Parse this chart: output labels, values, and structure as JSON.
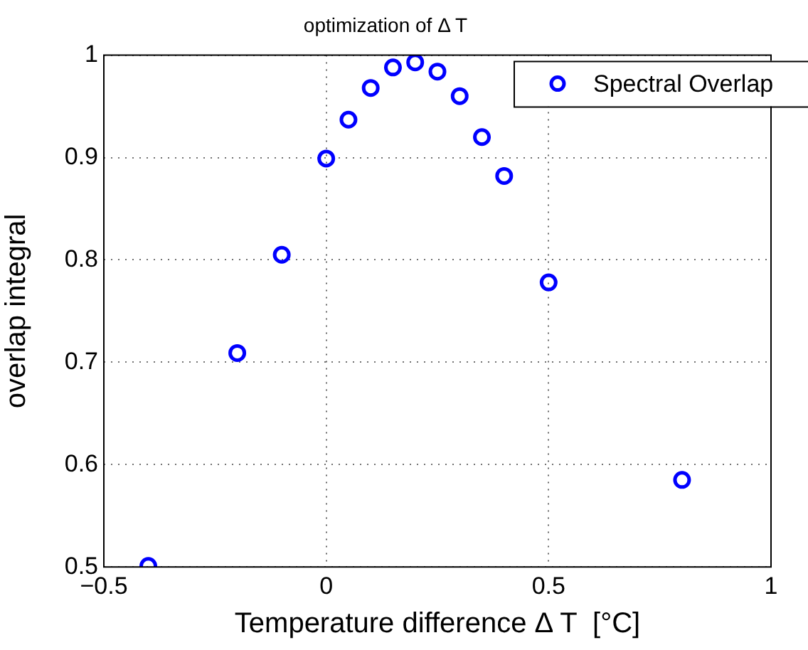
{
  "chart_data": {
    "type": "scatter",
    "title": "optimization of Δ T",
    "xlabel": "Temperature difference Δ T  [°C]",
    "ylabel": "overlap integral",
    "x": [
      -0.4,
      -0.2,
      -0.1,
      0,
      0.05,
      0.1,
      0.15,
      0.2,
      0.25,
      0.3,
      0.35,
      0.4,
      0.5,
      0.8
    ],
    "series": [
      {
        "name": "Spectral Overlap",
        "color": "#0000ff",
        "values": [
          0.501,
          0.709,
          0.805,
          0.899,
          0.937,
          0.968,
          0.988,
          0.993,
          0.984,
          0.96,
          0.92,
          0.882,
          0.778,
          0.585
        ]
      }
    ],
    "xlim": [
      -0.5,
      1
    ],
    "xticks": [
      {
        "value": -0.5,
        "label": "−0.5"
      },
      0,
      0.5,
      1
    ],
    "ylim": [
      0.5,
      1
    ],
    "yticks": [
      0.5,
      0.6,
      0.7,
      0.8,
      0.9,
      1
    ],
    "grid": true,
    "legend": "top right",
    "marker": "circle"
  }
}
